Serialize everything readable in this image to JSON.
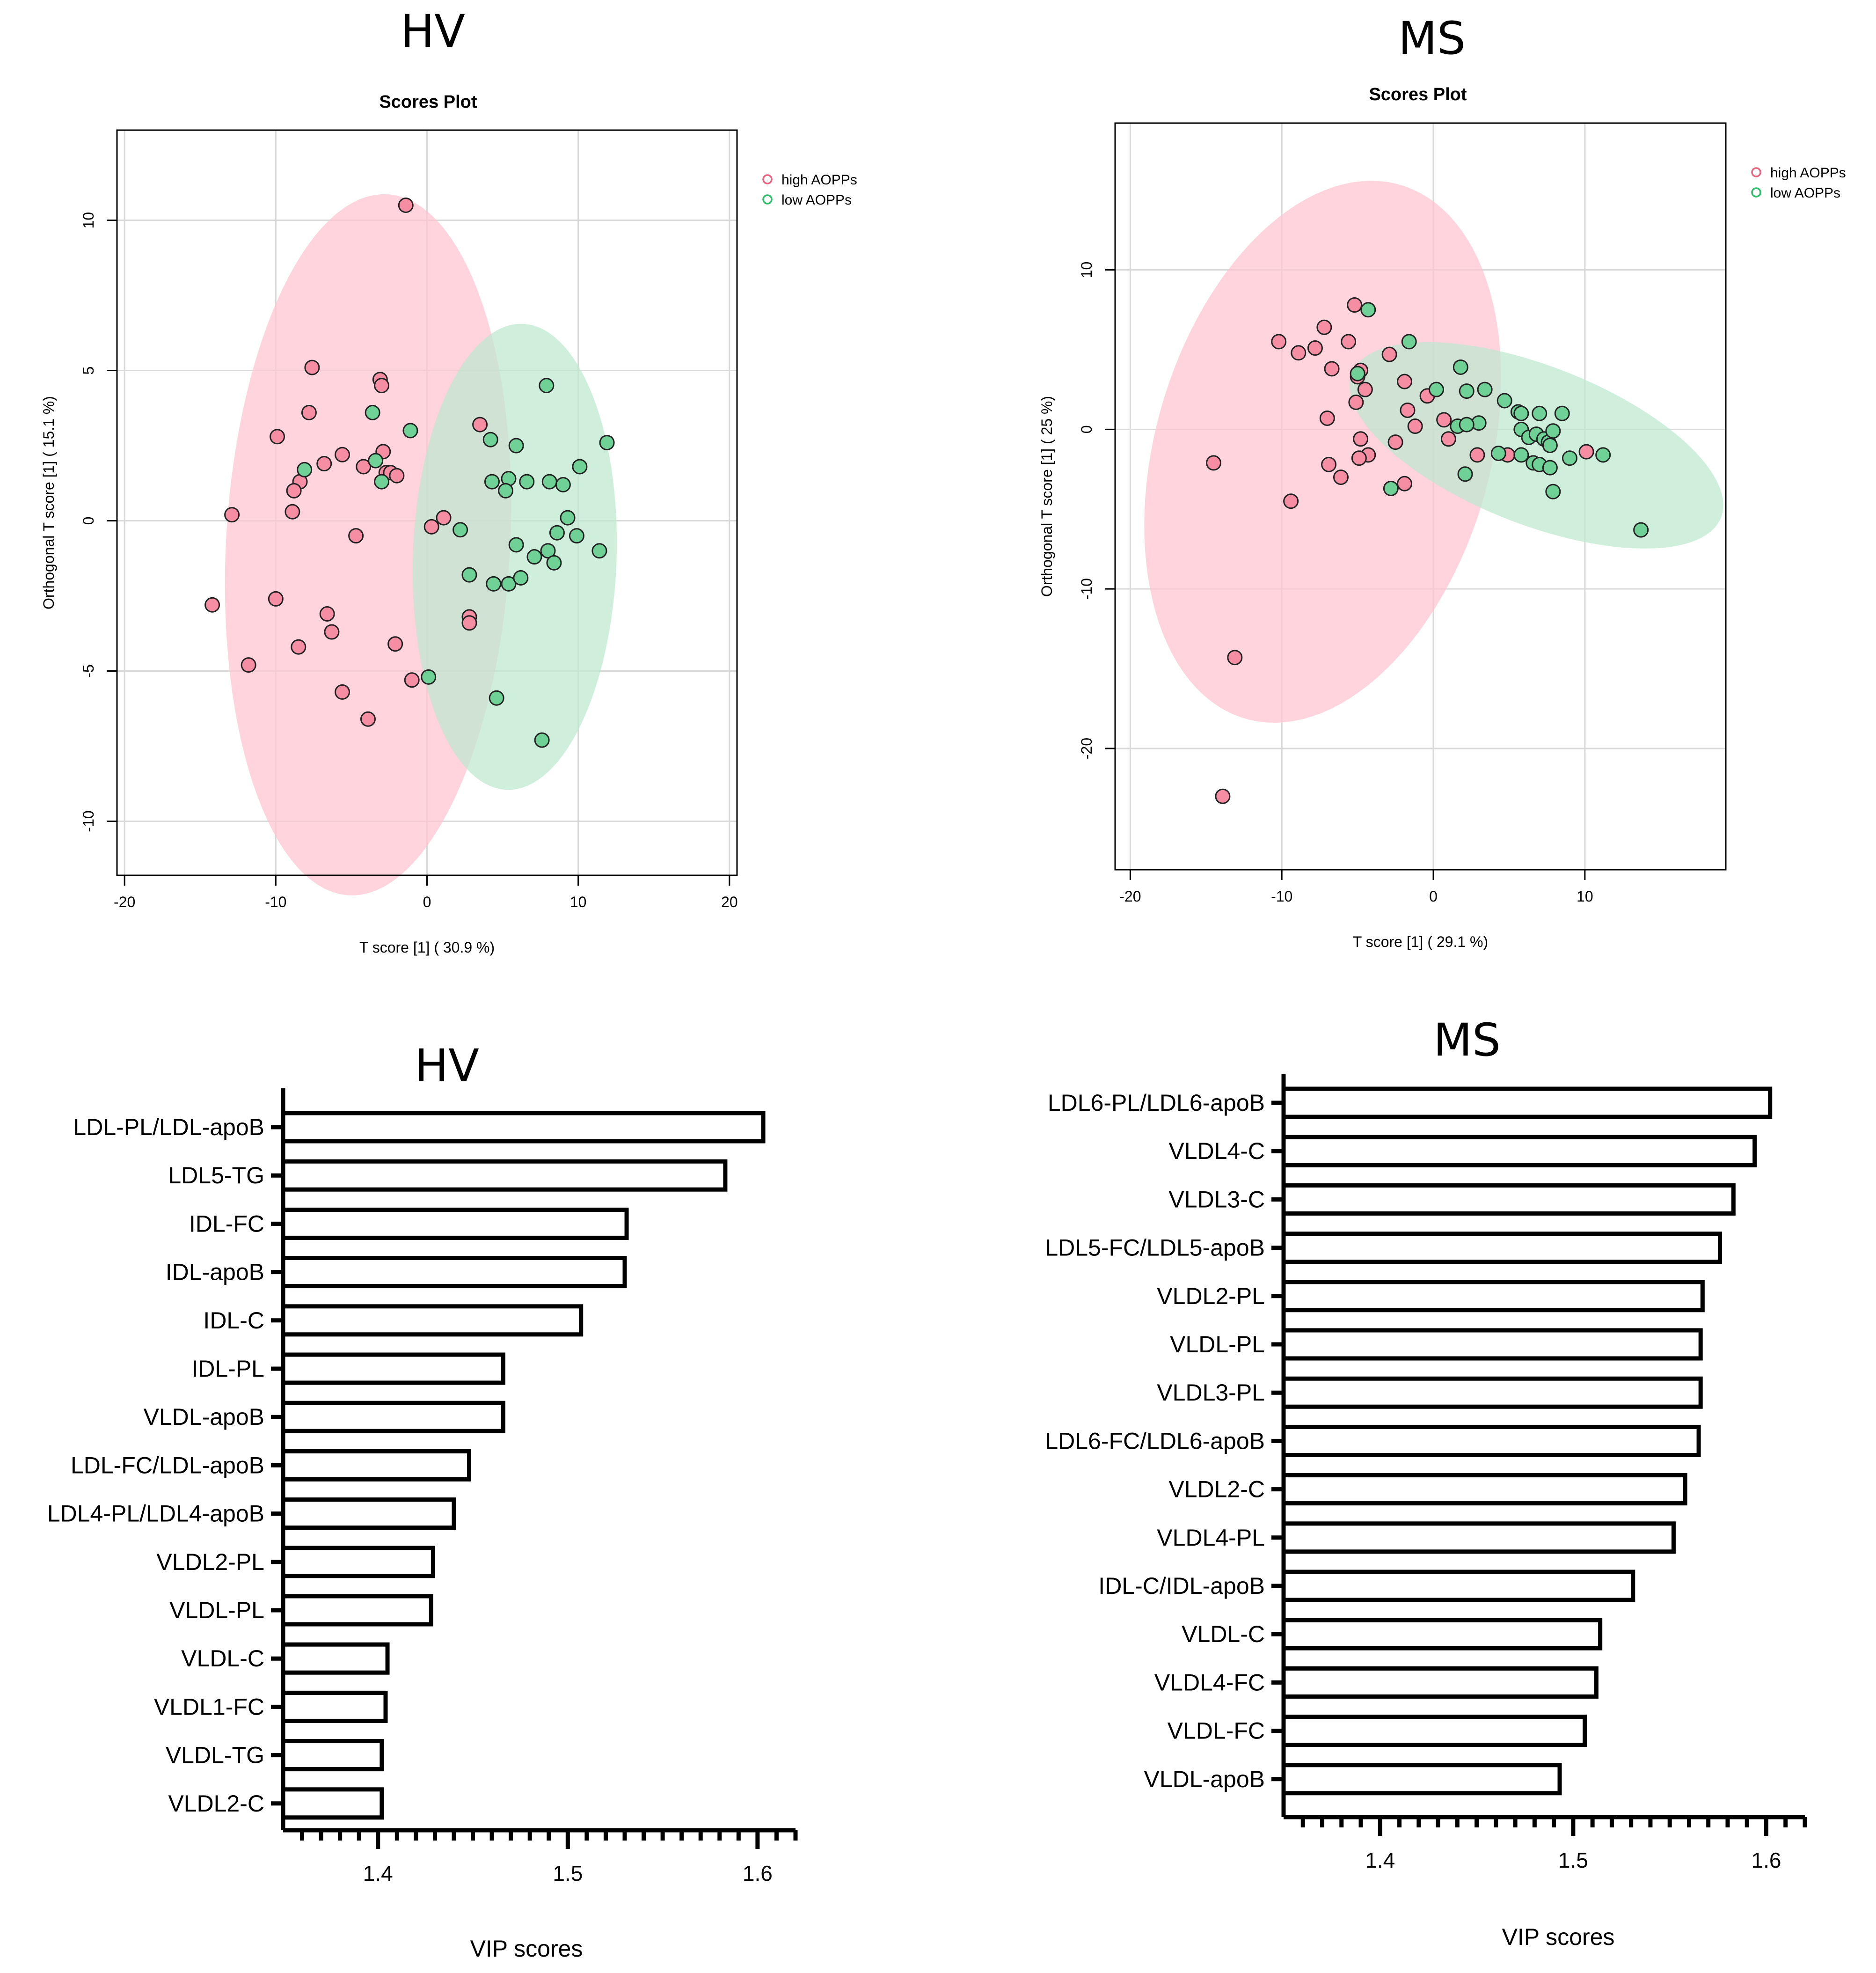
{
  "chart_data": [
    {
      "type": "scatter",
      "panel_title": "HV",
      "title": "Scores Plot",
      "xlabel": "T score [1] ( 30.9 %)",
      "ylabel": "Orthogonal T score [1] ( 15.1 %)",
      "xlim": [
        -20.5,
        20.5
      ],
      "ylim": [
        -11.8,
        13.0
      ],
      "xticks": [
        -20,
        -10,
        0,
        10,
        20
      ],
      "yticks": [
        -10,
        -5,
        0,
        5,
        10
      ],
      "grid": true,
      "legend_position": "top-right",
      "series": [
        {
          "name": "high AOPPs",
          "color": "#e8637f",
          "fill": "#f58ea3",
          "ellipse_fill": "#ffc4d0",
          "ellipse": {
            "cx": -3.9,
            "cy": -0.8,
            "rx": 11.8,
            "ry": 9.3,
            "angle_deg": 76
          },
          "points": [
            [
              -1.4,
              10.5
            ],
            [
              -7.6,
              5.1
            ],
            [
              -3.1,
              4.7
            ],
            [
              -3.0,
              4.5
            ],
            [
              -7.8,
              3.6
            ],
            [
              -9.9,
              2.8
            ],
            [
              -5.6,
              2.2
            ],
            [
              -6.8,
              1.9
            ],
            [
              -2.9,
              2.3
            ],
            [
              -4.2,
              1.8
            ],
            [
              -2.7,
              1.6
            ],
            [
              -2.4,
              1.6
            ],
            [
              -2.0,
              1.5
            ],
            [
              -8.4,
              1.3
            ],
            [
              -8.8,
              1.0
            ],
            [
              -8.9,
              0.3
            ],
            [
              -12.9,
              0.2
            ],
            [
              3.5,
              3.2
            ],
            [
              1.1,
              0.1
            ],
            [
              0.3,
              -0.2
            ],
            [
              -4.7,
              -0.5
            ],
            [
              -10.0,
              -2.6
            ],
            [
              -14.2,
              -2.8
            ],
            [
              -6.6,
              -3.1
            ],
            [
              -6.3,
              -3.7
            ],
            [
              -8.5,
              -4.2
            ],
            [
              -11.8,
              -4.8
            ],
            [
              -2.1,
              -4.1
            ],
            [
              -1.0,
              -5.3
            ],
            [
              -5.6,
              -5.7
            ],
            [
              -3.9,
              -6.6
            ],
            [
              2.8,
              -3.2
            ],
            [
              2.8,
              -3.4
            ]
          ]
        },
        {
          "name": "low AOPPs",
          "color": "#2ebd6a",
          "fill": "#6fd196",
          "ellipse_fill": "#bde8ce",
          "ellipse": {
            "cx": 5.8,
            "cy": -1.2,
            "rx": 6.7,
            "ry": 7.8,
            "angle_deg": -12
          },
          "points": [
            [
              7.9,
              4.5
            ],
            [
              -3.6,
              3.6
            ],
            [
              -1.1,
              3.0
            ],
            [
              4.2,
              2.7
            ],
            [
              5.9,
              2.5
            ],
            [
              11.9,
              2.6
            ],
            [
              -8.1,
              1.7
            ],
            [
              -3.4,
              2.0
            ],
            [
              -3.0,
              1.3
            ],
            [
              4.3,
              1.3
            ],
            [
              5.4,
              1.4
            ],
            [
              5.2,
              1.0
            ],
            [
              6.6,
              1.3
            ],
            [
              8.1,
              1.3
            ],
            [
              9.0,
              1.2
            ],
            [
              10.1,
              1.8
            ],
            [
              9.3,
              0.1
            ],
            [
              8.6,
              -0.4
            ],
            [
              9.9,
              -0.5
            ],
            [
              2.2,
              -0.3
            ],
            [
              5.9,
              -0.8
            ],
            [
              7.1,
              -1.2
            ],
            [
              8.0,
              -1.0
            ],
            [
              11.4,
              -1.0
            ],
            [
              2.8,
              -1.8
            ],
            [
              4.4,
              -2.1
            ],
            [
              5.4,
              -2.1
            ],
            [
              6.2,
              -1.9
            ],
            [
              8.4,
              -1.4
            ],
            [
              0.1,
              -5.2
            ],
            [
              4.6,
              -5.9
            ],
            [
              7.6,
              -7.3
            ]
          ]
        }
      ]
    },
    {
      "type": "scatter",
      "panel_title": "MS",
      "title": "Scores Plot",
      "xlabel": "T score [1] ( 29.1 %)",
      "ylabel": "Orthogonal T score [1] ( 25 %)",
      "xlim": [
        -21.0,
        19.3
      ],
      "ylim": [
        -27.6,
        19.2
      ],
      "xticks": [
        -20,
        -10,
        0,
        10
      ],
      "yticks": [
        -20,
        -10,
        0,
        10
      ],
      "grid": true,
      "legend_position": "top-right",
      "series": [
        {
          "name": "high AOPPs",
          "color": "#e8637f",
          "fill": "#f58ea3",
          "ellipse_fill": "#ffc4d0",
          "ellipse": {
            "cx": -7.3,
            "cy": -1.4,
            "rx": 17.5,
            "ry": 11.0,
            "angle_deg": 72
          },
          "points": [
            [
              -5.2,
              7.8
            ],
            [
              -7.2,
              6.4
            ],
            [
              -10.2,
              5.5
            ],
            [
              -8.9,
              4.8
            ],
            [
              -7.8,
              5.1
            ],
            [
              -5.6,
              5.5
            ],
            [
              -6.7,
              3.8
            ],
            [
              -5.0,
              3.3
            ],
            [
              -4.8,
              3.7
            ],
            [
              -2.9,
              4.7
            ],
            [
              -4.5,
              2.5
            ],
            [
              -5.1,
              1.7
            ],
            [
              -1.9,
              3.0
            ],
            [
              -0.4,
              2.1
            ],
            [
              -7.0,
              0.7
            ],
            [
              -1.7,
              1.2
            ],
            [
              -1.2,
              0.2
            ],
            [
              0.7,
              0.6
            ],
            [
              1.0,
              -0.6
            ],
            [
              -2.5,
              -0.8
            ],
            [
              -4.8,
              -0.6
            ],
            [
              -4.3,
              -1.6
            ],
            [
              -4.9,
              -1.8
            ],
            [
              -6.9,
              -2.2
            ],
            [
              -6.1,
              -3.0
            ],
            [
              -1.9,
              -3.4
            ],
            [
              2.9,
              -1.6
            ],
            [
              4.9,
              -1.6
            ],
            [
              10.1,
              -1.4
            ],
            [
              -14.5,
              -2.1
            ],
            [
              -9.4,
              -4.5
            ],
            [
              -13.1,
              -14.3
            ],
            [
              -13.9,
              -23.0
            ]
          ]
        },
        {
          "name": "low AOPPs",
          "color": "#2ebd6a",
          "fill": "#6fd196",
          "ellipse_fill": "#bde8ce",
          "ellipse": {
            "cx": 6.8,
            "cy": -1.0,
            "rx": 13.0,
            "ry": 5.0,
            "angle_deg": -20
          },
          "points": [
            [
              -4.3,
              7.5
            ],
            [
              -1.6,
              5.5
            ],
            [
              -5.0,
              3.5
            ],
            [
              1.8,
              3.9
            ],
            [
              0.2,
              2.5
            ],
            [
              2.2,
              2.4
            ],
            [
              3.4,
              2.5
            ],
            [
              4.7,
              1.8
            ],
            [
              5.6,
              1.1
            ],
            [
              5.8,
              1.0
            ],
            [
              7.0,
              1.0
            ],
            [
              8.5,
              1.0
            ],
            [
              3.0,
              0.4
            ],
            [
              1.6,
              0.2
            ],
            [
              2.2,
              0.3
            ],
            [
              5.8,
              0.0
            ],
            [
              6.3,
              -0.5
            ],
            [
              6.8,
              -0.3
            ],
            [
              7.3,
              -0.6
            ],
            [
              7.6,
              -0.8
            ],
            [
              7.7,
              -1.0
            ],
            [
              7.9,
              -0.1
            ],
            [
              4.3,
              -1.5
            ],
            [
              5.8,
              -1.6
            ],
            [
              6.6,
              -2.1
            ],
            [
              7.0,
              -2.2
            ],
            [
              7.7,
              -2.4
            ],
            [
              9.0,
              -1.8
            ],
            [
              11.2,
              -1.6
            ],
            [
              -2.8,
              -3.7
            ],
            [
              2.1,
              -2.8
            ],
            [
              7.9,
              -3.9
            ],
            [
              13.7,
              -6.3
            ]
          ]
        }
      ]
    },
    {
      "type": "bar",
      "orientation": "horizontal",
      "panel_title": "HV",
      "xlabel": "VIP scores",
      "xlim": [
        1.35,
        1.62
      ],
      "xticks": [
        1.4,
        1.5,
        1.6
      ],
      "categories": [
        "LDL-PL/LDL-apoB",
        "LDL5-TG",
        "IDL-FC",
        "IDL-apoB",
        "IDL-C",
        "IDL-PL",
        "VLDL-apoB",
        "LDL-FC/LDL-apoB",
        "LDL4-PL/LDL4-apoB",
        "VLDL2-PL",
        "VLDL-PL",
        "VLDL-C",
        "VLDL1-FC",
        "VLDL-TG",
        "VLDL2-C"
      ],
      "values": [
        1.603,
        1.583,
        1.531,
        1.53,
        1.507,
        1.466,
        1.466,
        1.448,
        1.44,
        1.429,
        1.428,
        1.405,
        1.404,
        1.402,
        1.402
      ]
    },
    {
      "type": "bar",
      "orientation": "horizontal",
      "panel_title": "MS",
      "xlabel": "VIP scores",
      "xlim": [
        1.35,
        1.62
      ],
      "xticks": [
        1.4,
        1.5,
        1.6
      ],
      "categories": [
        "LDL6-PL/LDL6-apoB",
        "VLDL4-C",
        "VLDL3-C",
        "LDL5-FC/LDL5-apoB",
        "VLDL2-PL",
        "VLDL-PL",
        "VLDL3-PL",
        "LDL6-FC/LDL6-apoB",
        "VLDL2-C",
        "VLDL4-PL",
        "IDL-C/IDL-apoB",
        "VLDL-C",
        "VLDL4-FC",
        "VLDL-FC",
        "VLDL-apoB"
      ],
      "values": [
        1.602,
        1.594,
        1.583,
        1.576,
        1.567,
        1.566,
        1.566,
        1.565,
        1.558,
        1.552,
        1.531,
        1.514,
        1.512,
        1.506,
        1.493
      ]
    }
  ]
}
